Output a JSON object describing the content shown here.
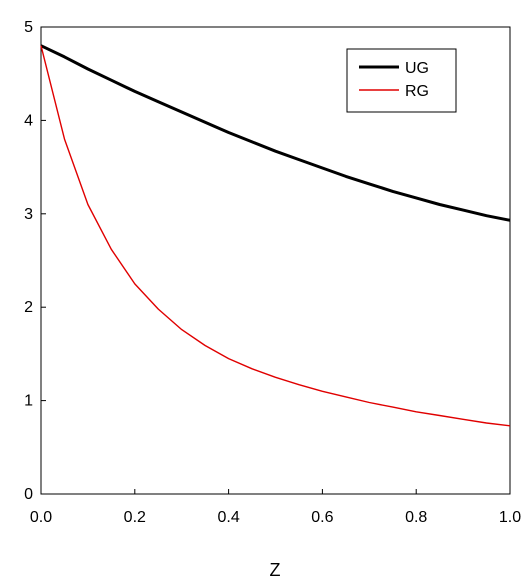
{
  "chart_data": {
    "type": "line",
    "title": "",
    "xlabel": "Z",
    "ylabel": "",
    "xlim": [
      0,
      1
    ],
    "ylim": [
      0,
      5
    ],
    "x_ticks": [
      "0.0",
      "0.2",
      "0.4",
      "0.6",
      "0.8",
      "1.0"
    ],
    "y_ticks": [
      "0",
      "1",
      "2",
      "3",
      "4",
      "5"
    ],
    "grid": false,
    "legend_position": "top-right",
    "x": [
      0.0,
      0.05,
      0.1,
      0.15,
      0.2,
      0.25,
      0.3,
      0.35,
      0.4,
      0.45,
      0.5,
      0.55,
      0.6,
      0.65,
      0.7,
      0.75,
      0.8,
      0.85,
      0.9,
      0.95,
      1.0
    ],
    "series": [
      {
        "name": "UG",
        "color": "#000000",
        "style": "thick",
        "values": [
          4.8,
          4.68,
          4.55,
          4.43,
          4.31,
          4.2,
          4.09,
          3.98,
          3.87,
          3.77,
          3.67,
          3.58,
          3.49,
          3.4,
          3.32,
          3.24,
          3.17,
          3.1,
          3.04,
          2.98,
          2.93
        ]
      },
      {
        "name": "RG",
        "color": "#e00000",
        "style": "thin",
        "values": [
          4.8,
          3.8,
          3.1,
          2.62,
          2.25,
          1.98,
          1.76,
          1.59,
          1.45,
          1.34,
          1.25,
          1.17,
          1.1,
          1.04,
          0.98,
          0.93,
          0.88,
          0.84,
          0.8,
          0.76,
          0.73
        ]
      }
    ]
  }
}
